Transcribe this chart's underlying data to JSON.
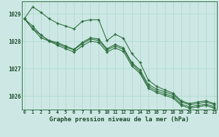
{
  "hours": [
    0,
    1,
    2,
    3,
    4,
    5,
    6,
    7,
    8,
    9,
    10,
    11,
    12,
    13,
    14,
    15,
    16,
    17,
    18,
    19,
    20,
    21,
    22,
    23
  ],
  "line_top": [
    1028.82,
    1029.25,
    1029.05,
    1028.82,
    1028.65,
    1028.55,
    1028.45,
    1028.72,
    1028.78,
    1028.78,
    1028.02,
    1028.25,
    1028.1,
    1027.55,
    1027.22,
    1026.58,
    1026.35,
    1026.22,
    1026.1,
    1025.82,
    1025.72,
    1025.78,
    1025.82,
    1025.72
  ],
  "line_mid1": [
    1028.82,
    1028.45,
    1028.12,
    1028.0,
    1027.85,
    1027.72,
    1027.6,
    1027.82,
    1028.0,
    1027.95,
    1027.6,
    1027.75,
    1027.62,
    1027.1,
    1026.82,
    1026.28,
    1026.12,
    1026.02,
    1025.92,
    1025.65,
    1025.55,
    1025.6,
    1025.65,
    1025.55
  ],
  "line_mid2": [
    1028.82,
    1028.45,
    1028.22,
    1028.0,
    1027.9,
    1027.78,
    1027.68,
    1027.9,
    1028.08,
    1028.02,
    1027.68,
    1027.82,
    1027.7,
    1027.18,
    1026.88,
    1026.35,
    1026.18,
    1026.08,
    1025.98,
    1025.7,
    1025.6,
    1025.65,
    1025.7,
    1025.6
  ],
  "line_main": [
    1028.82,
    1028.55,
    1028.22,
    1028.02,
    1027.95,
    1027.82,
    1027.7,
    1027.95,
    1028.12,
    1028.08,
    1027.72,
    1027.88,
    1027.75,
    1027.22,
    1026.95,
    1026.42,
    1026.25,
    1026.15,
    1026.05,
    1025.78,
    1025.68,
    1025.72,
    1025.78,
    1025.68
  ],
  "ylim": [
    1025.5,
    1029.45
  ],
  "yticks": [
    1026,
    1027,
    1028,
    1029
  ],
  "bg_color": "#cde8e4",
  "grid_color": "#b0d8d0",
  "line_color": "#2d6e3e",
  "xlabel": "Graphe pression niveau de la mer (hPa)"
}
